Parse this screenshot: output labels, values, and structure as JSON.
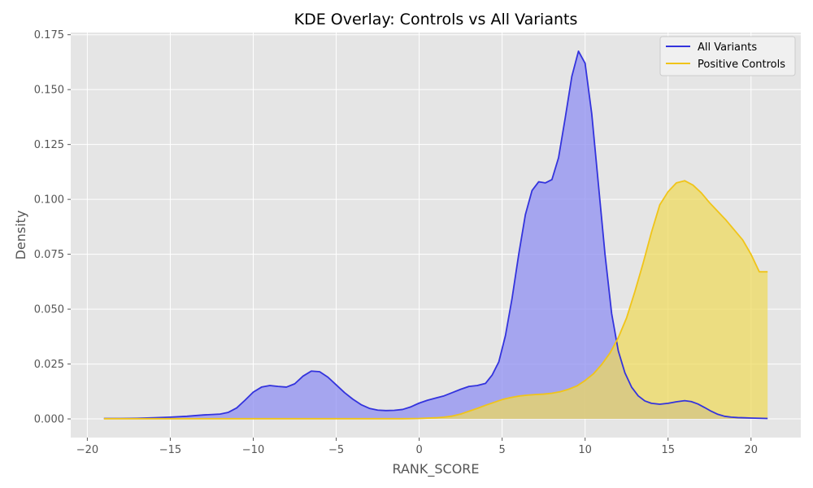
{
  "chart_data": {
    "type": "area",
    "title": "KDE Overlay: Controls vs All Variants",
    "xlabel": "RANK_SCORE",
    "ylabel": "Density",
    "xlim": [
      -21,
      23
    ],
    "ylim": [
      -0.0085,
      0.176
    ],
    "xticks": [
      -20,
      -15,
      -10,
      -5,
      0,
      5,
      10,
      15,
      20
    ],
    "yticks": [
      0.0,
      0.025,
      0.05,
      0.075,
      0.1,
      0.125,
      0.15,
      0.175
    ],
    "xtick_labels": [
      "−20",
      "−15",
      "−10",
      "−5",
      "0",
      "5",
      "10",
      "15",
      "20"
    ],
    "ytick_labels": [
      "0.000",
      "0.025",
      "0.050",
      "0.075",
      "0.100",
      "0.125",
      "0.150",
      "0.175"
    ],
    "grid": true,
    "legend_position": "top-right",
    "series": [
      {
        "name": "All Variants",
        "color": "#3333dd",
        "fill": "#8f8ff2",
        "x": [
          -19,
          -18,
          -17,
          -16,
          -15,
          -14,
          -13,
          -12,
          -11.5,
          -11,
          -10.5,
          -10,
          -9.5,
          -9,
          -8.5,
          -8,
          -7.5,
          -7,
          -6.5,
          -6,
          -5.5,
          -5,
          -4.5,
          -4,
          -3.5,
          -3,
          -2.5,
          -2,
          -1.5,
          -1,
          -0.5,
          0,
          0.5,
          1,
          1.5,
          2,
          2.5,
          3,
          3.5,
          4,
          4.4,
          4.8,
          5.2,
          5.6,
          6,
          6.4,
          6.8,
          7.2,
          7.6,
          8,
          8.4,
          8.8,
          9.2,
          9.6,
          10,
          10.4,
          10.8,
          11.2,
          11.6,
          12,
          12.4,
          12.8,
          13.2,
          13.6,
          14,
          14.5,
          15,
          15.5,
          16,
          16.4,
          16.8,
          17.2,
          17.6,
          18,
          18.4,
          18.8,
          19.2,
          19.6,
          20,
          20.5,
          21
        ],
        "y": [
          0.0002,
          0.0002,
          0.0003,
          0.0005,
          0.0008,
          0.0012,
          0.0018,
          0.0022,
          0.003,
          0.005,
          0.0085,
          0.0122,
          0.0145,
          0.0152,
          0.0148,
          0.0145,
          0.016,
          0.0195,
          0.0218,
          0.0215,
          0.019,
          0.0155,
          0.012,
          0.009,
          0.0065,
          0.0048,
          0.004,
          0.0038,
          0.0039,
          0.0043,
          0.0055,
          0.0072,
          0.0085,
          0.0095,
          0.0105,
          0.012,
          0.0135,
          0.0148,
          0.0152,
          0.0162,
          0.02,
          0.026,
          0.038,
          0.055,
          0.075,
          0.093,
          0.104,
          0.108,
          0.1075,
          0.109,
          0.119,
          0.137,
          0.156,
          0.1675,
          0.162,
          0.139,
          0.107,
          0.075,
          0.048,
          0.031,
          0.021,
          0.0145,
          0.0105,
          0.0082,
          0.0071,
          0.0067,
          0.0071,
          0.0078,
          0.0083,
          0.0079,
          0.0068,
          0.0052,
          0.0035,
          0.0021,
          0.0012,
          0.0008,
          0.0006,
          0.0005,
          0.0004,
          0.0003,
          0.0002
        ]
      },
      {
        "name": "Positive Controls",
        "color": "#f0c419",
        "fill": "#efd95a",
        "x": [
          -19,
          -16,
          -13,
          -10,
          -7,
          -4,
          -1,
          0,
          1,
          1.5,
          2,
          2.5,
          3,
          3.5,
          4,
          4.5,
          5,
          5.5,
          6,
          6.5,
          7,
          7.5,
          8,
          8.5,
          9,
          9.5,
          10,
          10.5,
          11,
          11.5,
          12,
          12.5,
          13,
          13.5,
          14,
          14.5,
          15,
          15.5,
          16,
          16.5,
          17,
          17.5,
          18,
          18.5,
          19,
          19.5,
          20,
          20.5,
          21
        ],
        "y": [
          0.0001,
          0.0001,
          0.0001,
          0.0001,
          0.0001,
          0.0001,
          0.0001,
          0.0002,
          0.0005,
          0.0008,
          0.0013,
          0.0022,
          0.0035,
          0.0048,
          0.0062,
          0.0075,
          0.0088,
          0.0097,
          0.0104,
          0.0108,
          0.0111,
          0.0113,
          0.0117,
          0.0124,
          0.0135,
          0.015,
          0.0175,
          0.0205,
          0.0248,
          0.03,
          0.037,
          0.046,
          0.058,
          0.071,
          0.085,
          0.0975,
          0.1035,
          0.1075,
          0.1085,
          0.1065,
          0.103,
          0.0985,
          0.0945,
          0.0905,
          0.086,
          0.0815,
          0.075,
          0.067,
          0.067
        ]
      }
    ]
  }
}
